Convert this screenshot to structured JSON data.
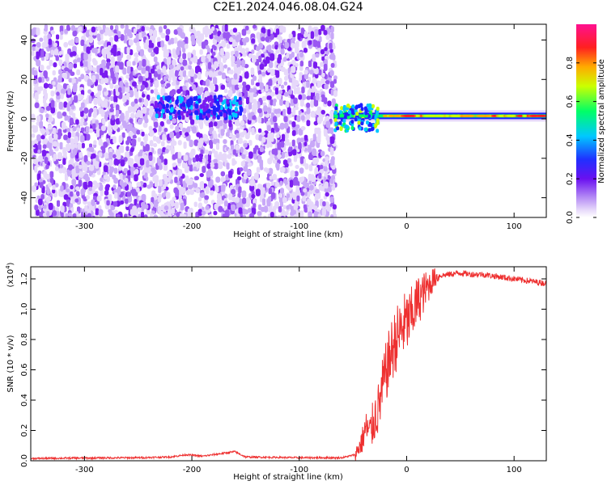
{
  "title": "C2E1.2024.046.08.04.G24",
  "chart_data": [
    {
      "type": "heatmap",
      "xlabel": "Height of straight line (km)",
      "ylabel": "Frequency (Hz)",
      "xlim": [
        -350,
        130
      ],
      "ylim": [
        -50,
        48
      ],
      "x_ticks": [
        -300,
        -200,
        -100,
        0,
        100
      ],
      "y_ticks": [
        -40,
        -20,
        0,
        20,
        40
      ],
      "grid": false,
      "colorbar": {
        "label": "Normalized spectral amplitude",
        "range": [
          0.0,
          1.0
        ],
        "ticks": [
          0.0,
          0.2,
          0.4,
          0.6,
          0.8
        ],
        "colormap": [
          "#ffffff",
          "#c8a8f8",
          "#7a1cf0",
          "#2020ff",
          "#00c8ff",
          "#00ff66",
          "#ccff00",
          "#ffaa00",
          "#ff2020",
          "#ff1090"
        ]
      },
      "features": {
        "noise_x_range": [
          -350,
          -68
        ],
        "signal_line_frequency": 1.5,
        "signal_line_x_range": [
          -68,
          130
        ],
        "low_frequency_blob_x_range": [
          -235,
          -155
        ],
        "low_frequency_blob_frequency": 7
      }
    },
    {
      "type": "line",
      "xlabel": "Height of straight line (km)",
      "ylabel": "SNR (10 * v/v)",
      "yscale_label": "(x10",
      "yscale_exponent": "4",
      "scale_factor": 10000,
      "xlim": [
        -350,
        130
      ],
      "ylim": [
        0,
        1.28
      ],
      "x_ticks": [
        -300,
        -200,
        -100,
        0,
        100
      ],
      "y_ticks": [
        0.0,
        0.2,
        0.4,
        0.6,
        0.8,
        1.0,
        1.2
      ],
      "y_tick_labels": [
        "0.0",
        "0.2",
        "0.4",
        "0.6",
        "0.8",
        "1.0",
        "1.2"
      ],
      "grid": false,
      "series": [
        {
          "color": "#ee3030",
          "x": [
            -350,
            -300,
            -250,
            -220,
            -205,
            -190,
            -170,
            -160,
            -150,
            -100,
            -60,
            -48,
            -42,
            -38,
            -34,
            -30,
            -26,
            -22,
            -18,
            -14,
            -10,
            -6,
            -2,
            2,
            6,
            10,
            15,
            20,
            25,
            30,
            40,
            50,
            60,
            70,
            80,
            90,
            100,
            110,
            120,
            130
          ],
          "values": [
            0.015,
            0.018,
            0.02,
            0.025,
            0.04,
            0.03,
            0.05,
            0.06,
            0.025,
            0.02,
            0.02,
            0.04,
            0.12,
            0.22,
            0.18,
            0.28,
            0.35,
            0.5,
            0.62,
            0.72,
            0.8,
            0.85,
            0.9,
            0.92,
            0.98,
            1.05,
            1.1,
            1.15,
            1.2,
            1.22,
            1.23,
            1.24,
            1.23,
            1.23,
            1.22,
            1.21,
            1.2,
            1.19,
            1.18,
            1.17
          ]
        }
      ]
    }
  ]
}
